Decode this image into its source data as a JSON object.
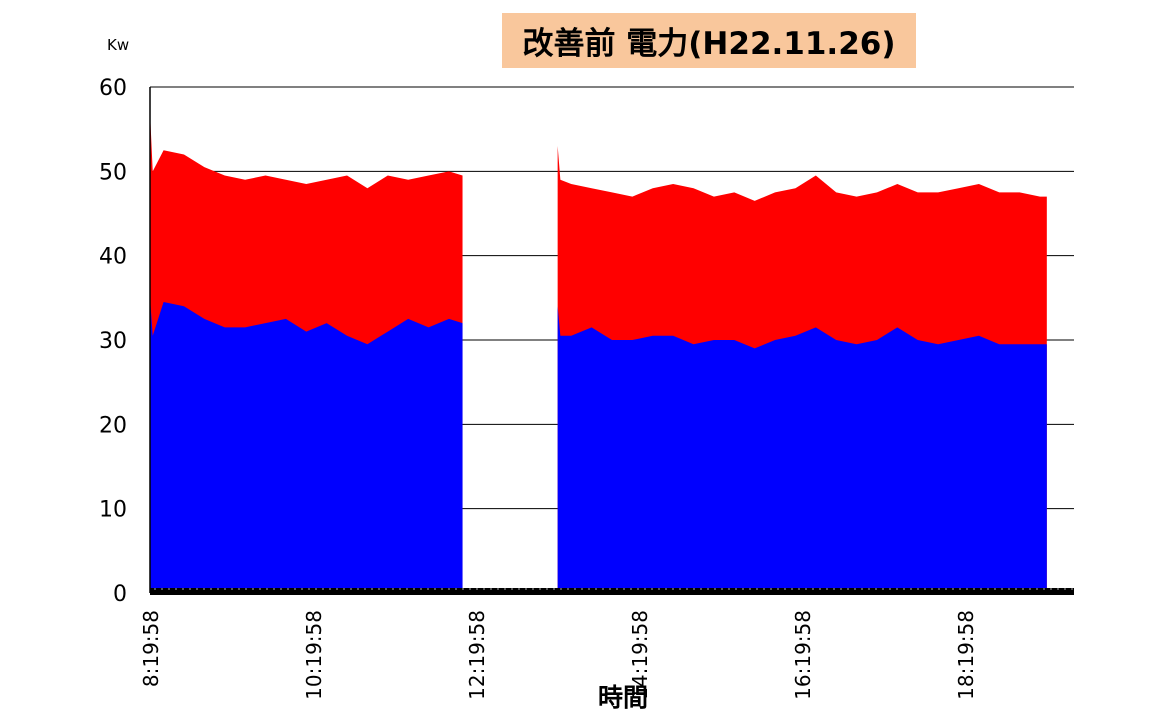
{
  "chart_data": {
    "type": "area",
    "stacked": true,
    "title": "改善前  電力(H22.11.26)",
    "ylabel": "Kw",
    "xlabel": "時間",
    "ylim": [
      0,
      60
    ],
    "yticks": [
      0,
      10,
      20,
      30,
      40,
      50,
      60
    ],
    "xticks": [
      "8:19:58",
      "10:19:58",
      "12:19:58",
      "14:19:58",
      "16:19:58",
      "18:19:58"
    ],
    "grid": true,
    "colors": {
      "lower": "#0000ff",
      "upper": "#ff0000"
    },
    "series": [
      {
        "segment": 1,
        "times": [
          "8:20",
          "8:22",
          "8:30",
          "8:45",
          "9:00",
          "9:15",
          "9:30",
          "9:45",
          "10:00",
          "10:15",
          "10:30",
          "10:45",
          "11:00",
          "11:15",
          "11:30",
          "11:45",
          "12:00",
          "12:10"
        ],
        "lower_values": [
          35,
          30.5,
          34.5,
          34,
          32.5,
          31.5,
          31.5,
          32,
          32.5,
          31,
          32,
          30.5,
          29.5,
          31,
          32.5,
          31.5,
          32.5,
          32
        ],
        "total_values": [
          57,
          50,
          52.5,
          52,
          50.5,
          49.5,
          49,
          49.5,
          49,
          48.5,
          49,
          49.5,
          48,
          49.5,
          49,
          49.5,
          50,
          49.5
        ]
      },
      {
        "segment": 2,
        "times": [
          "13:20",
          "13:22",
          "13:30",
          "13:45",
          "14:00",
          "14:15",
          "14:30",
          "14:45",
          "15:00",
          "15:15",
          "15:30",
          "15:45",
          "16:00",
          "16:15",
          "16:30",
          "16:45",
          "17:00",
          "17:15",
          "17:30",
          "17:45",
          "18:00",
          "18:15",
          "18:30",
          "18:45",
          "19:00",
          "19:15",
          "19:20"
        ],
        "lower_values": [
          34,
          30.5,
          30.5,
          31.5,
          30,
          30,
          30.5,
          30.5,
          29.5,
          30,
          30,
          29,
          30,
          30.5,
          31.5,
          30,
          29.5,
          30,
          31.5,
          30,
          29.5,
          30,
          30.5,
          29.5,
          29.5,
          29.5,
          29.5
        ],
        "total_values": [
          53,
          49,
          48.5,
          48,
          47.5,
          47,
          48,
          48.5,
          48,
          47,
          47.5,
          46.5,
          47.5,
          48,
          49.5,
          47.5,
          47,
          47.5,
          48.5,
          47.5,
          47.5,
          48,
          48.5,
          47.5,
          47.5,
          47,
          47
        ]
      }
    ]
  }
}
